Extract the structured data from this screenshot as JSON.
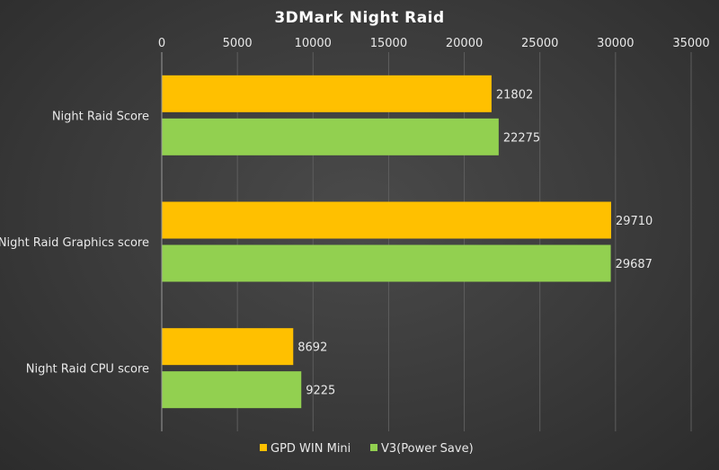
{
  "chart_data": {
    "type": "bar",
    "orientation": "horizontal",
    "title": "3DMark  Night  Raid",
    "xlabel": "",
    "ylabel": "",
    "xlim": [
      0,
      35000
    ],
    "x_ticks": [
      0,
      5000,
      10000,
      15000,
      20000,
      25000,
      30000,
      35000
    ],
    "x_axis_position": "top",
    "grid": true,
    "legend_position": "bottom",
    "categories": [
      "Night Raid Score",
      "Night Raid Graphics score",
      "Night Raid CPU score"
    ],
    "series": [
      {
        "name": "GPD WIN Mini",
        "color": "#FFC000",
        "values": [
          21802,
          29710,
          8692
        ]
      },
      {
        "name": "V3(Power Save)",
        "color": "#92D050",
        "values": [
          22275,
          29687,
          9225
        ]
      }
    ]
  }
}
